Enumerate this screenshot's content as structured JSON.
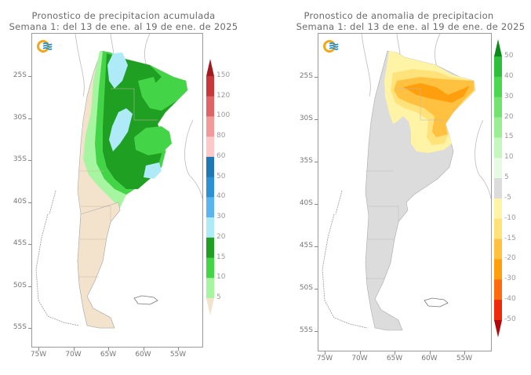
{
  "panels": [
    {
      "id": "acumulada",
      "title_line1": "Pronostico de precipitacion acumulada",
      "title_line2": "Semana 1: del 13 de ene. al 19 de ene. de 2025",
      "lat_labels": [
        "25S",
        "30S",
        "35S",
        "40S",
        "45S",
        "50S",
        "55S"
      ],
      "lon_labels": [
        "75W",
        "70W",
        "65W",
        "60W",
        "55W"
      ],
      "colorbar": {
        "labels": [
          "150",
          "120",
          "100",
          "80",
          "60",
          "50",
          "40",
          "30",
          "20",
          "15",
          "10",
          "5"
        ],
        "colors_top_to_bottom": [
          "#a01a1e",
          "#c8373b",
          "#e06466",
          "#f29a9a",
          "#fcc9c9",
          "#1f78b4",
          "#2b90d4",
          "#5ab4ee",
          "#aeeaf8",
          "#1fa023",
          "#43d448",
          "#a6f5a0",
          "#f3e3cc"
        ],
        "arrow_top_color": "#a01a1e",
        "arrow_bottom_color": "#f3e3cc"
      },
      "fill": {
        "land": "#f3e3cc",
        "sea": "#ffffff"
      }
    },
    {
      "id": "anomalia",
      "title_line1": "Pronostico de anomalia de precipitacion",
      "title_line2": "Semana 1: del 13 de ene. al 19 de ene. de 2025",
      "lat_labels": [
        "25S",
        "30S",
        "35S",
        "40S",
        "45S",
        "50S",
        "55S"
      ],
      "lon_labels": [
        "75W",
        "70W",
        "65W",
        "60W",
        "55W"
      ],
      "colorbar": {
        "labels": [
          "50",
          "40",
          "30",
          "20",
          "15",
          "10",
          "5",
          "-5",
          "-10",
          "-15",
          "-20",
          "-30",
          "-40",
          "-50"
        ],
        "colors_top_to_bottom": [
          "#0b8a1a",
          "#2ec03a",
          "#4bd84f",
          "#72e36f",
          "#9aee94",
          "#c6f7c0",
          "#e6fbe2",
          "#dcdcdc",
          "#fff3a6",
          "#ffe27a",
          "#ffc13f",
          "#ff9f0d",
          "#ff6a0d",
          "#ef2a0a",
          "#b0090a"
        ],
        "arrow_top_color": "#0b8a1a",
        "arrow_bottom_color": "#b0090a"
      },
      "fill": {
        "land": "#dcdcdc",
        "sea": "#ffffff"
      }
    }
  ],
  "logo": {
    "name": "smn-logo",
    "ring_color": "#f0a91c",
    "wave_color": "#1d8fd8"
  }
}
